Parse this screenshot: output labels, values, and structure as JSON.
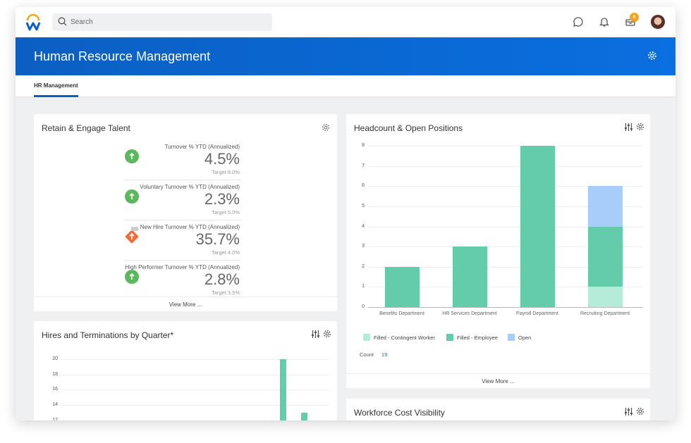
{
  "header": {
    "search_placeholder": "Search",
    "notification_badge": "8",
    "icons": [
      "chat-icon",
      "bell-icon",
      "inbox-icon",
      "avatar"
    ]
  },
  "banner": {
    "title": "Human Resource Management"
  },
  "tabs": [
    {
      "label": "HR Management",
      "active": true
    }
  ],
  "retain": {
    "title": "Retain & Engage Talent",
    "view_more": "View More ...",
    "kpis": [
      {
        "label": "Turnover % YTD (Annualized)",
        "value": "4.5%",
        "target": "Target 8.0%",
        "status": "up-green"
      },
      {
        "label": "Voluntary Turnover % YTD (Annualized)",
        "value": "2.3%",
        "target": "Target 5.0%",
        "status": "up-green"
      },
      {
        "label": "New Hire Turnover % YTD (Annualized)",
        "value": "35.7%",
        "target": "Target 4.0%",
        "status": "up-orange"
      },
      {
        "label": "High Performer Turnover % YTD (Annualized)",
        "value": "2.8%",
        "target": "Target 3.5%",
        "status": "up-green"
      }
    ]
  },
  "headcount": {
    "title": "Headcount & Open Positions",
    "count_label": "Count",
    "count_value": "19",
    "view_more": "View More ..."
  },
  "hires": {
    "title": "Hires and Terminations by Quarter*"
  },
  "workforce": {
    "title": "Workforce Cost Visibility"
  },
  "colors": {
    "brand": "#0b5fc2",
    "contingent": "#b5ebd9",
    "employee": "#63ccaa",
    "open": "#a9cdfb",
    "green": "#5cb85c",
    "orange": "#f26b3a"
  },
  "chart_data": [
    {
      "type": "bar",
      "stacked": true,
      "ylim": [
        0,
        8
      ],
      "yticks": [
        "0",
        "1",
        "2",
        "3",
        "4",
        "5",
        "6",
        "7",
        "8"
      ],
      "grid": true,
      "legend": "bottom-left",
      "categories": [
        "Benefits Department",
        "HR Services Department",
        "Payroll Department",
        "Recruiting Department"
      ],
      "series": [
        {
          "name": "Filled - Contingent Worker",
          "values": [
            0,
            0,
            0,
            1
          ]
        },
        {
          "name": "Filled - Employee",
          "values": [
            2,
            3,
            8,
            3
          ]
        },
        {
          "name": "Open",
          "values": [
            0,
            0,
            0,
            2
          ]
        }
      ]
    },
    {
      "type": "bar",
      "yticks": [
        "12",
        "14",
        "16",
        "18",
        "20"
      ],
      "grid": true,
      "values": [
        20,
        13
      ]
    }
  ]
}
